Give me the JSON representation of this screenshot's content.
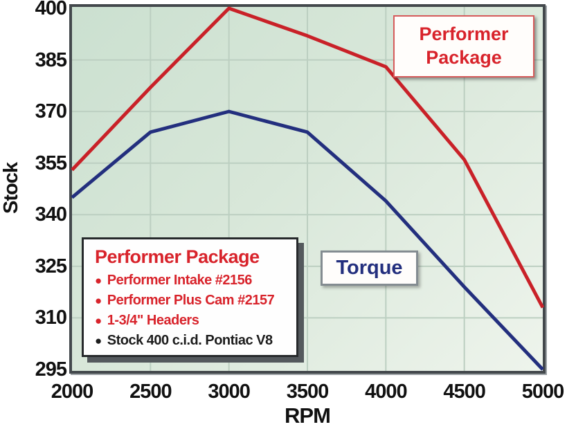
{
  "chart_data": {
    "type": "line",
    "x_label": "RPM",
    "y_label": "Stock",
    "x": [
      2000,
      2500,
      3000,
      3500,
      4000,
      4500,
      5000
    ],
    "x_ticks": [
      2000,
      2500,
      3000,
      3500,
      4000,
      4500,
      5000
    ],
    "y_ticks": [
      295,
      310,
      325,
      340,
      355,
      370,
      385,
      400
    ],
    "x_range": [
      2000,
      5000
    ],
    "y_range": [
      295,
      400
    ],
    "grid": true,
    "series": [
      {
        "name": "Performer Package",
        "color": "#c92128",
        "values": [
          353,
          377,
          400,
          392,
          383,
          356,
          313
        ]
      },
      {
        "name": "Torque (Stock)",
        "color": "#232f7e",
        "values": [
          345,
          364,
          370,
          364,
          344,
          319,
          295
        ]
      }
    ]
  },
  "annotations": {
    "performer_label": {
      "line1": "Performer",
      "line2": "Package",
      "color": "#d8232b"
    },
    "torque_label": {
      "text": "Torque",
      "color": "#232f7e"
    }
  },
  "legend": {
    "title": "Performer Package",
    "title_color": "#d8232b",
    "items": [
      {
        "text": "Performer Intake #2156",
        "color": "#d8232b"
      },
      {
        "text": "Performer Plus Cam #2157",
        "color": "#d8232b"
      },
      {
        "text": "1-3/4\" Headers",
        "color": "#d8232b"
      },
      {
        "text": "Stock 400 c.i.d. Pontiac V8",
        "color": "#1c1c1c"
      }
    ]
  }
}
